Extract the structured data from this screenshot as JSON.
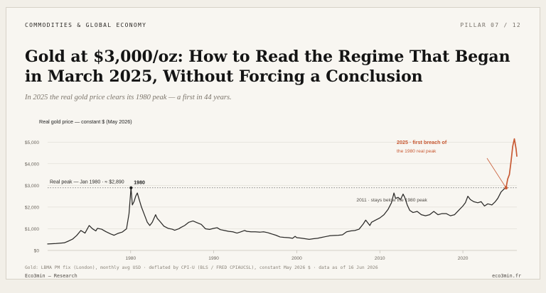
{
  "header": {
    "section": "COMMODITIES & GLOBAL ECONOMY",
    "pillar": "PILLAR 07 / 12"
  },
  "title": "Gold at $3,000/oz: How to Read the Regime That Began in March 2025, Without Forcing a Conclusion",
  "subtitle": "In 2025 the real gold price clears its 1980 peak — a first in 44 years.",
  "source": "Gold: LBMA PM fix (London), monthly avg USD · deflated by CPI-U (BLS / FRED CPIAUCSL), constant May 2026 $ · data as of 16 Jun 2026",
  "footer": {
    "left": "Eco3min — Research",
    "right": "eco3min.fr"
  },
  "colors": {
    "line": "#2b2a28",
    "highlight": "#c85a34",
    "reference": "#7b7b7b",
    "grid": "#d9d5cd"
  },
  "chart_data": {
    "type": "line",
    "ylabel": "Real gold price — constant $ (May 2026)",
    "xlim": [
      1970.0,
      2026.5
    ],
    "ylim": [
      0,
      5500
    ],
    "grid": true,
    "yticks": [
      {
        "value": 0,
        "label": "$0"
      },
      {
        "value": 1000,
        "label": "$1,000"
      },
      {
        "value": 2000,
        "label": "$2,000"
      },
      {
        "value": 3000,
        "label": "$3,000"
      },
      {
        "value": 4000,
        "label": "$4,000"
      },
      {
        "value": 5000,
        "label": "$5,000"
      }
    ],
    "xticks": [
      {
        "value": 1980,
        "label": "1980"
      },
      {
        "value": 1990,
        "label": "1990"
      },
      {
        "value": 2000,
        "label": "2000"
      },
      {
        "value": 2010,
        "label": "2010"
      },
      {
        "value": 2020,
        "label": "2020"
      }
    ],
    "reference_value": 2890,
    "reference_label": "Real peak — Jan 1980 · ≈ $2,890",
    "peak_point": {
      "x": 1980.04,
      "y": 2890,
      "label": "1980"
    },
    "annotation_2011": {
      "x": 2011.7,
      "label": "2011 · stays below the 1980 peak"
    },
    "annotation_2025": {
      "x": 2025.2,
      "y": 2890,
      "line1": "2025 · first breach of",
      "line2": "the 1980 real peak"
    },
    "series": [
      {
        "values": [
          [
            1970.0,
            300
          ],
          [
            1971.0,
            320
          ],
          [
            1972.0,
            350
          ],
          [
            1972.5,
            430
          ],
          [
            1973.0,
            520
          ],
          [
            1973.5,
            690
          ],
          [
            1974.0,
            920
          ],
          [
            1974.5,
            800
          ],
          [
            1974.8,
            1010
          ],
          [
            1975.0,
            1150
          ],
          [
            1975.4,
            1000
          ],
          [
            1975.8,
            900
          ],
          [
            1976.0,
            1020
          ],
          [
            1976.5,
            980
          ],
          [
            1977.0,
            870
          ],
          [
            1977.6,
            760
          ],
          [
            1978.0,
            700
          ],
          [
            1978.5,
            790
          ],
          [
            1979.0,
            850
          ],
          [
            1979.5,
            1000
          ],
          [
            1979.8,
            1700
          ],
          [
            1980.04,
            2890
          ],
          [
            1980.2,
            2100
          ],
          [
            1980.4,
            2250
          ],
          [
            1980.6,
            2500
          ],
          [
            1980.8,
            2650
          ],
          [
            1981.0,
            2380
          ],
          [
            1981.3,
            2000
          ],
          [
            1981.6,
            1700
          ],
          [
            1982.0,
            1300
          ],
          [
            1982.3,
            1150
          ],
          [
            1982.6,
            1300
          ],
          [
            1983.0,
            1650
          ],
          [
            1983.2,
            1480
          ],
          [
            1983.5,
            1350
          ],
          [
            1984.0,
            1120
          ],
          [
            1984.5,
            1020
          ],
          [
            1985.0,
            980
          ],
          [
            1985.3,
            930
          ],
          [
            1985.8,
            1000
          ],
          [
            1986.0,
            1050
          ],
          [
            1986.5,
            1150
          ],
          [
            1987.0,
            1300
          ],
          [
            1987.5,
            1360
          ],
          [
            1988.0,
            1280
          ],
          [
            1988.5,
            1200
          ],
          [
            1989.0,
            1000
          ],
          [
            1989.5,
            970
          ],
          [
            1990.0,
            1020
          ],
          [
            1990.4,
            1050
          ],
          [
            1990.8,
            960
          ],
          [
            1991.3,
            920
          ],
          [
            1991.8,
            880
          ],
          [
            1992.3,
            860
          ],
          [
            1992.8,
            800
          ],
          [
            1993.2,
            850
          ],
          [
            1993.7,
            920
          ],
          [
            1994.0,
            880
          ],
          [
            1994.5,
            860
          ],
          [
            1995.0,
            860
          ],
          [
            1995.6,
            845
          ],
          [
            1996.0,
            860
          ],
          [
            1996.5,
            820
          ],
          [
            1997.0,
            760
          ],
          [
            1997.5,
            700
          ],
          [
            1998.0,
            620
          ],
          [
            1998.5,
            600
          ],
          [
            1999.0,
            590
          ],
          [
            1999.5,
            560
          ],
          [
            1999.8,
            650
          ],
          [
            2000.0,
            590
          ],
          [
            2000.5,
            570
          ],
          [
            2001.0,
            540
          ],
          [
            2001.5,
            510
          ],
          [
            2002.0,
            540
          ],
          [
            2002.5,
            560
          ],
          [
            2003.0,
            600
          ],
          [
            2003.5,
            640
          ],
          [
            2004.0,
            680
          ],
          [
            2004.5,
            690
          ],
          [
            2005.0,
            700
          ],
          [
            2005.5,
            720
          ],
          [
            2006.0,
            860
          ],
          [
            2006.5,
            900
          ],
          [
            2007.0,
            920
          ],
          [
            2007.5,
            980
          ],
          [
            2008.0,
            1220
          ],
          [
            2008.3,
            1400
          ],
          [
            2008.8,
            1150
          ],
          [
            2009.0,
            1300
          ],
          [
            2009.5,
            1400
          ],
          [
            2010.0,
            1500
          ],
          [
            2010.5,
            1650
          ],
          [
            2011.0,
            1900
          ],
          [
            2011.4,
            2200
          ],
          [
            2011.7,
            2650
          ],
          [
            2011.9,
            2400
          ],
          [
            2012.2,
            2450
          ],
          [
            2012.5,
            2350
          ],
          [
            2012.8,
            2600
          ],
          [
            2013.0,
            2450
          ],
          [
            2013.3,
            2100
          ],
          [
            2013.6,
            1850
          ],
          [
            2014.0,
            1750
          ],
          [
            2014.5,
            1800
          ],
          [
            2015.0,
            1650
          ],
          [
            2015.5,
            1600
          ],
          [
            2016.0,
            1650
          ],
          [
            2016.5,
            1800
          ],
          [
            2017.0,
            1650
          ],
          [
            2017.5,
            1700
          ],
          [
            2018.0,
            1700
          ],
          [
            2018.5,
            1600
          ],
          [
            2019.0,
            1650
          ],
          [
            2019.5,
            1850
          ],
          [
            2020.0,
            2050
          ],
          [
            2020.3,
            2200
          ],
          [
            2020.6,
            2500
          ],
          [
            2020.9,
            2350
          ],
          [
            2021.3,
            2250
          ],
          [
            2021.8,
            2200
          ],
          [
            2022.2,
            2250
          ],
          [
            2022.6,
            2050
          ],
          [
            2023.0,
            2150
          ],
          [
            2023.5,
            2100
          ],
          [
            2023.9,
            2250
          ],
          [
            2024.2,
            2400
          ],
          [
            2024.6,
            2700
          ],
          [
            2025.0,
            2850
          ],
          [
            2025.2,
            2900
          ]
        ]
      },
      {
        "values": [
          [
            2025.2,
            2900
          ],
          [
            2025.4,
            3300
          ],
          [
            2025.6,
            3500
          ],
          [
            2025.8,
            4100
          ],
          [
            2026.0,
            4800
          ],
          [
            2026.2,
            5150
          ],
          [
            2026.4,
            4700
          ],
          [
            2026.5,
            4350
          ]
        ]
      }
    ]
  }
}
